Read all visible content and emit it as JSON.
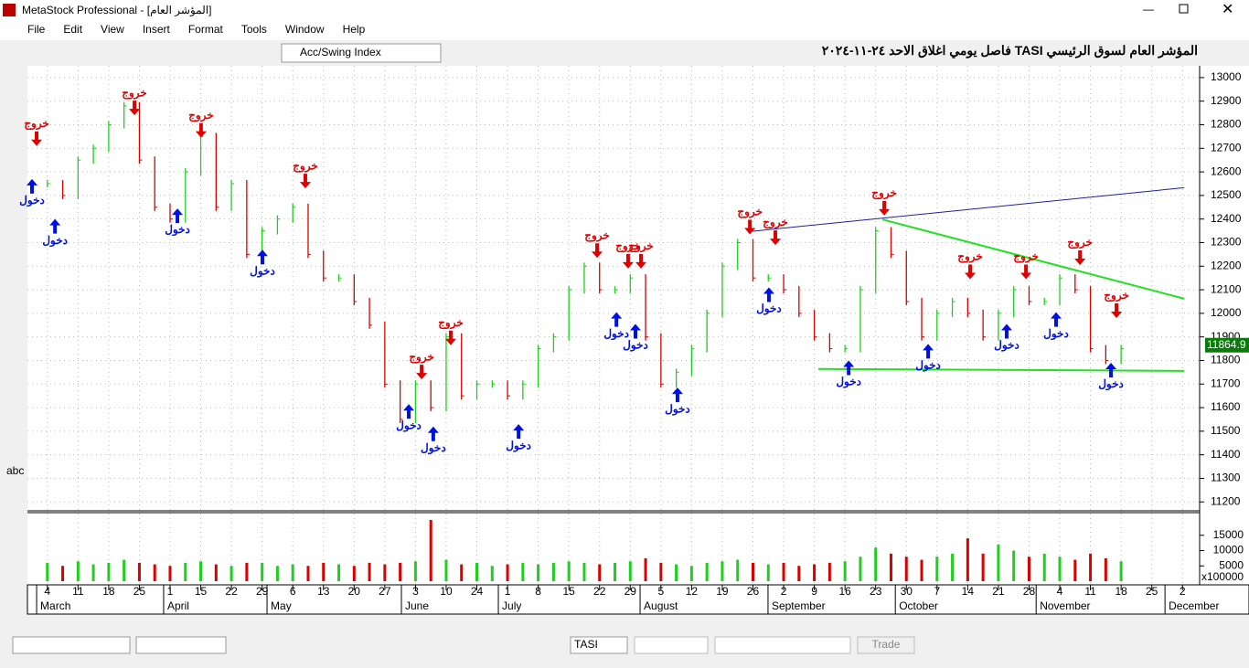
{
  "window": {
    "title": "MetaStock Professional - [المؤشر العام]"
  },
  "menu": [
    "File",
    "Edit",
    "View",
    "Insert",
    "Format",
    "Tools",
    "Window",
    "Help"
  ],
  "toolbar": {
    "indicator": "Acc/Swing Index",
    "side_label": "abc"
  },
  "statusbar": {
    "symbol": "TASI",
    "button": "Trade"
  },
  "chart_data": {
    "type": "bar",
    "title_parts": [
      "المؤشر العام لسوق الرئيسي",
      "TASI",
      "فاصل يومي اغلاق الاحد ٢٤-١١-٢٠٢٤"
    ],
    "last_price": "11864.9",
    "up_color": "#1ecf1e",
    "down_color": "#d90000",
    "grid": true,
    "xlim": [
      -0.5,
      37.5
    ],
    "xticks": [
      {
        "value": 0,
        "label": "4"
      },
      {
        "value": 1,
        "label": "11"
      },
      {
        "value": 2,
        "label": "18"
      },
      {
        "value": 3,
        "label": "25"
      },
      {
        "value": 4,
        "label": "1"
      },
      {
        "value": 5,
        "label": "15"
      },
      {
        "value": 6,
        "label": "22"
      },
      {
        "value": 7,
        "label": "29"
      },
      {
        "value": 8,
        "label": "6"
      },
      {
        "value": 9,
        "label": "13"
      },
      {
        "value": 10,
        "label": "20"
      },
      {
        "value": 11,
        "label": "27"
      },
      {
        "value": 12,
        "label": "3"
      },
      {
        "value": 13,
        "label": "10"
      },
      {
        "value": 14,
        "label": "24"
      },
      {
        "value": 15,
        "label": "1"
      },
      {
        "value": 16,
        "label": "8"
      },
      {
        "value": 17,
        "label": "15"
      },
      {
        "value": 18,
        "label": "22"
      },
      {
        "value": 19,
        "label": "29"
      },
      {
        "value": 20,
        "label": "5"
      },
      {
        "value": 21,
        "label": "12"
      },
      {
        "value": 22,
        "label": "19"
      },
      {
        "value": 23,
        "label": "26"
      },
      {
        "value": 24,
        "label": "2"
      },
      {
        "value": 25,
        "label": "9"
      },
      {
        "value": 26,
        "label": "16"
      },
      {
        "value": 27,
        "label": "23"
      },
      {
        "value": 28,
        "label": "30"
      },
      {
        "value": 29,
        "label": "7"
      },
      {
        "value": 30,
        "label": "14"
      },
      {
        "value": 31,
        "label": "21"
      },
      {
        "value": 32,
        "label": "28"
      },
      {
        "value": 33,
        "label": "4"
      },
      {
        "value": 34,
        "label": "11"
      },
      {
        "value": 35,
        "label": "18"
      },
      {
        "value": 36,
        "label": "25"
      },
      {
        "value": 37,
        "label": "2"
      }
    ],
    "months": [
      {
        "label": "March",
        "x": -0.23
      },
      {
        "label": "April",
        "x": 3.91
      },
      {
        "label": "May",
        "x": 7.28
      },
      {
        "label": "June",
        "x": 11.66
      },
      {
        "label": "July",
        "x": 14.82
      },
      {
        "label": "August",
        "x": 19.44
      },
      {
        "label": "September",
        "x": 23.61
      },
      {
        "label": "October",
        "x": 27.76
      },
      {
        "label": "November",
        "x": 32.35
      },
      {
        "label": "December",
        "x": 36.55
      }
    ],
    "x": [
      0,
      0.5,
      1,
      1.5,
      2,
      2.5,
      3,
      3.5,
      4,
      4.5,
      5,
      5.5,
      6,
      6.5,
      7,
      7.5,
      8,
      8.5,
      9,
      9.5,
      10,
      10.5,
      11,
      11.5,
      12,
      12.5,
      13,
      13.5,
      14,
      14.5,
      15,
      15.5,
      16,
      16.5,
      17,
      17.5,
      18,
      18.5,
      19,
      19.5,
      20,
      20.5,
      21,
      21.5,
      22,
      22.5,
      23,
      23.5,
      24,
      24.5,
      25,
      25.5,
      26,
      26.5,
      27,
      27.5,
      28,
      28.5,
      29,
      29.5,
      30,
      30.5,
      31,
      31.5,
      32,
      32.5,
      33,
      33.5,
      34,
      34.5,
      35
    ],
    "values": [
      12550,
      12500,
      12650,
      12700,
      12800,
      12880,
      12650,
      12450,
      12400,
      12600,
      12750,
      12450,
      12550,
      12250,
      12350,
      12400,
      12450,
      12250,
      12150,
      12150,
      12050,
      11950,
      11700,
      11550,
      11700,
      11600,
      11900,
      11650,
      11700,
      11700,
      11650,
      11700,
      11850,
      11900,
      12100,
      12200,
      12100,
      12100,
      12150,
      11900,
      11700,
      11750,
      11850,
      12000,
      12200,
      12300,
      12150,
      12150,
      12100,
      12000,
      11900,
      11850,
      11850,
      12100,
      12350,
      12250,
      12050,
      11900,
      12000,
      12050,
      12000,
      11900,
      12000,
      12100,
      12050,
      12050,
      12150,
      12100,
      11850,
      11800,
      11850
    ],
    "ylim": [
      11170,
      13050
    ],
    "yticks": [
      11200,
      11300,
      11400,
      11500,
      11600,
      11700,
      11800,
      11900,
      12000,
      12100,
      12200,
      12300,
      12400,
      12500,
      12600,
      12700,
      12800,
      12900,
      13000
    ],
    "volume": {
      "values": [
        6000,
        5000,
        6500,
        5500,
        6000,
        7000,
        6000,
        5500,
        5000,
        6000,
        6500,
        5500,
        5000,
        6000,
        6000,
        5000,
        5500,
        5000,
        6000,
        5500,
        5000,
        6000,
        5500,
        6000,
        6500,
        20000,
        7000,
        5500,
        6000,
        5000,
        5500,
        6000,
        5500,
        6000,
        6500,
        6000,
        5500,
        6000,
        6500,
        7500,
        6000,
        5500,
        5000,
        6000,
        6500,
        7000,
        6000,
        5500,
        6000,
        5000,
        5500,
        6000,
        6500,
        8000,
        11000,
        9000,
        8000,
        7000,
        8000,
        9000,
        14000,
        9000,
        12000,
        10000,
        8000,
        9000,
        8000,
        7000,
        9000,
        7500,
        6500
      ],
      "ylim": [
        0,
        21500
      ],
      "yticks": [
        5000,
        10000,
        15000
      ],
      "multiplier": "x100000"
    },
    "signals": {
      "exits": {
        "label": "خروج",
        "color": "#e00000",
        "points": [
          {
            "x": -0.35,
            "price": 12710
          },
          {
            "x": 2.84,
            "price": 12840
          },
          {
            "x": 5.01,
            "price": 12745
          },
          {
            "x": 8.41,
            "price": 12530
          },
          {
            "x": 12.2,
            "price": 11720
          },
          {
            "x": 13.15,
            "price": 11865
          },
          {
            "x": 17.92,
            "price": 12235
          },
          {
            "x": 18.93,
            "price": 12190
          },
          {
            "x": 19.35,
            "price": 12190
          },
          {
            "x": 22.9,
            "price": 12335
          },
          {
            "x": 23.73,
            "price": 12290
          },
          {
            "x": 27.28,
            "price": 12415
          },
          {
            "x": 30.08,
            "price": 12145
          },
          {
            "x": 31.9,
            "price": 12145
          },
          {
            "x": 33.66,
            "price": 12205
          },
          {
            "x": 34.85,
            "price": 11980
          }
        ]
      },
      "entries": {
        "label": "دخول",
        "color": "#0010e0",
        "points": [
          {
            "x": -0.5,
            "price": 12570
          },
          {
            "x": 0.25,
            "price": 12400
          },
          {
            "x": 4.24,
            "price": 12445
          },
          {
            "x": 7.01,
            "price": 12270
          },
          {
            "x": 11.78,
            "price": 11615
          },
          {
            "x": 12.58,
            "price": 11520
          },
          {
            "x": 15.36,
            "price": 11530
          },
          {
            "x": 18.55,
            "price": 12005
          },
          {
            "x": 19.17,
            "price": 11955
          },
          {
            "x": 20.54,
            "price": 11685
          },
          {
            "x": 23.52,
            "price": 12110
          },
          {
            "x": 26.12,
            "price": 11800
          },
          {
            "x": 28.71,
            "price": 11870
          },
          {
            "x": 31.27,
            "price": 11955
          },
          {
            "x": 32.88,
            "price": 12005
          },
          {
            "x": 34.67,
            "price": 11790
          }
        ]
      }
    },
    "trendlines": [
      {
        "color": "#1e1ea0",
        "x": [
          22.9,
          37.06
        ],
        "price": [
          12347,
          12533
        ]
      },
      {
        "color": "#22e022",
        "x": [
          27.22,
          37.06
        ],
        "price": [
          12398,
          12062
        ]
      },
      {
        "color": "#22e022",
        "x": [
          25.13,
          37.06
        ],
        "price": [
          11764,
          11756
        ]
      }
    ]
  }
}
